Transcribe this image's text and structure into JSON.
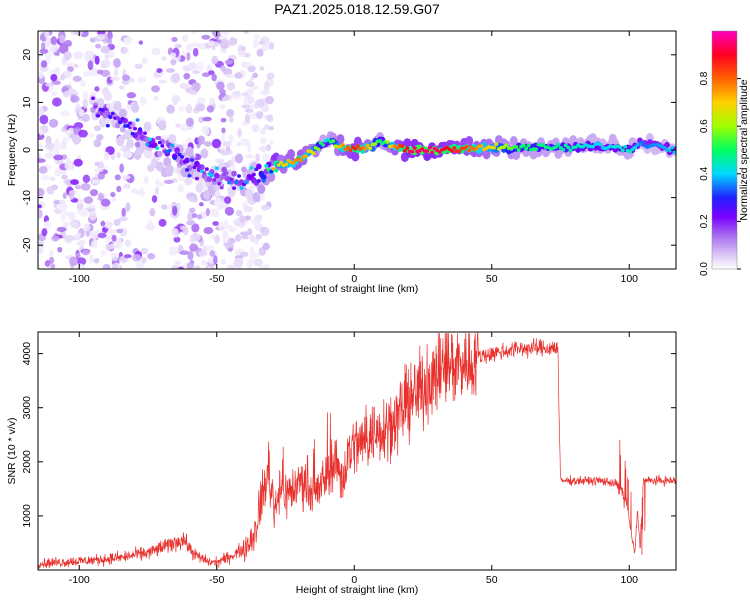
{
  "title": "PAZ1.2025.018.12.59.G07",
  "chart_data": [
    {
      "type": "heatmap",
      "xlabel": "Height of straight line (km)",
      "ylabel": "Frequency (Hz)",
      "xlim": [
        -115,
        117
      ],
      "ylim": [
        -25,
        25
      ],
      "xticks": [
        -100,
        -50,
        0,
        50,
        100
      ],
      "yticks": [
        -20,
        -10,
        0,
        10,
        20
      ],
      "xtick_labels": [
        "-100",
        "-50",
        "0",
        "50",
        "100"
      ],
      "ytick_labels": [
        "-20",
        "-10",
        "0",
        "10",
        "20"
      ],
      "colorbar": {
        "label": "Normalized spectral amplitude",
        "range": [
          0,
          1
        ],
        "ticks": [
          0.0,
          0.2,
          0.4,
          0.6,
          0.8
        ],
        "tick_labels": [
          "0.0",
          "0.2",
          "0.4",
          "0.6",
          "0.8"
        ],
        "colormap": [
          "#ffffff",
          "#d9c6f5",
          "#a86cf0",
          "#7a00ff",
          "#2020ff",
          "#00d8ff",
          "#00ff60",
          "#a0ff00",
          "#ffd000",
          "#ff6000",
          "#ff0020",
          "#ff00c0"
        ]
      },
      "ridge": {
        "x": [
          -95,
          -85,
          -75,
          -65,
          -55,
          -45,
          -35,
          -27,
          -20,
          -15,
          -10,
          -5,
          0,
          5,
          10,
          15,
          20,
          30,
          40,
          60,
          80,
          90,
          100,
          105,
          117
        ],
        "y": [
          9,
          6,
          2,
          -1,
          -5,
          -6,
          -6,
          -3,
          -2,
          0,
          2,
          0.5,
          0,
          0.5,
          2,
          0.5,
          0,
          0,
          0.5,
          0.5,
          0.5,
          1,
          0,
          1.5,
          0
        ],
        "amplitude": [
          0.25,
          0.3,
          0.35,
          0.35,
          0.35,
          0.3,
          0.4,
          0.7,
          0.8,
          0.7,
          0.45,
          0.75,
          0.9,
          0.75,
          0.5,
          0.8,
          0.95,
          0.95,
          0.85,
          0.55,
          0.5,
          0.45,
          0.5,
          0.4,
          0.45
        ]
      },
      "noise_zone": {
        "x_range": [
          -115,
          -30
        ],
        "y_range": [
          -25,
          25
        ]
      }
    },
    {
      "type": "line",
      "xlabel": "Height of straight line (km)",
      "ylabel": "SNR (10 * v/v)",
      "xlim": [
        -115,
        117
      ],
      "ylim": [
        0,
        4400
      ],
      "xticks": [
        -100,
        -50,
        0,
        50,
        100
      ],
      "yticks": [
        1000,
        2000,
        3000,
        4000
      ],
      "xtick_labels": [
        "-100",
        "-50",
        "0",
        "50",
        "100"
      ],
      "ytick_labels": [
        "1000",
        "2000",
        "3000",
        "4000"
      ],
      "color": "#e8302c",
      "series": [
        {
          "x": [
            -115,
            -105,
            -95,
            -85,
            -75,
            -68,
            -62,
            -60,
            -57,
            -53,
            -50,
            -45,
            -40,
            -36,
            -33,
            -31,
            -29,
            -27,
            -25,
            -22,
            -20,
            -18,
            -15,
            -12,
            -10,
            -8,
            -6,
            -4,
            -2,
            0,
            3,
            6,
            9,
            12,
            15,
            20,
            25,
            30,
            35,
            40,
            45,
            50,
            55,
            60,
            65,
            70,
            74,
            75,
            75.5,
            80,
            85,
            90,
            95,
            97,
            99,
            100,
            101,
            102,
            103,
            104,
            105,
            110,
            117
          ],
          "y": [
            120,
            150,
            180,
            230,
            320,
            450,
            570,
            400,
            250,
            150,
            140,
            250,
            400,
            700,
            1500,
            1800,
            1100,
            1600,
            1400,
            1500,
            1600,
            1700,
            1300,
            1550,
            1800,
            2000,
            1950,
            1650,
            2200,
            2300,
            2350,
            2500,
            2600,
            2700,
            2800,
            3100,
            3400,
            3600,
            3800,
            3850,
            3950,
            4000,
            4050,
            4100,
            4100,
            4100,
            4120,
            1650,
            1650,
            1650,
            1650,
            1650,
            1600,
            1500,
            1200,
            900,
            600,
            300,
            1100,
            400,
            1650,
            1650,
            1650
          ]
        }
      ]
    }
  ]
}
